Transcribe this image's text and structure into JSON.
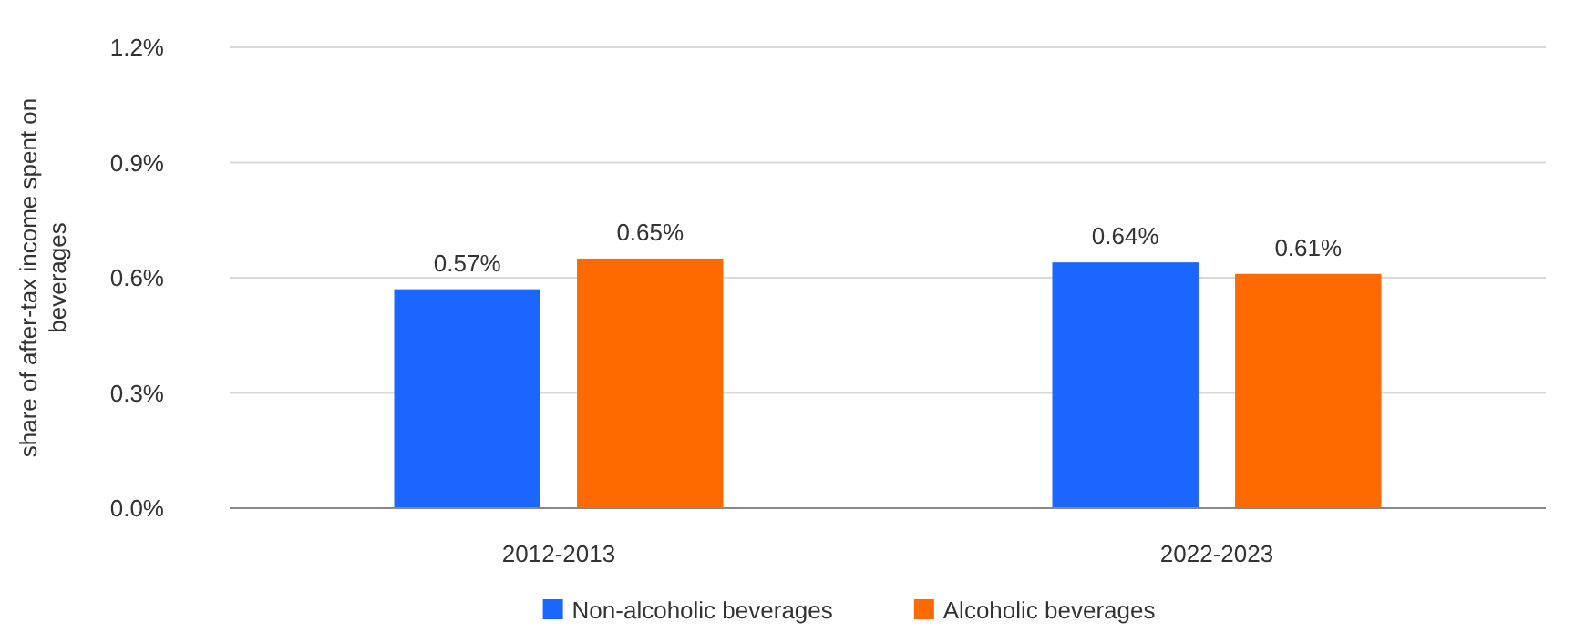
{
  "chart_data": {
    "type": "bar",
    "ylabel": "share of after-tax income spent on beverages",
    "categories": [
      "2012-2013",
      "2022-2023"
    ],
    "series": [
      {
        "name": "Non-alcoholic beverages",
        "color": "#1a66ff",
        "values": [
          0.57,
          0.64
        ],
        "value_labels": [
          "0.57%",
          "0.64%"
        ]
      },
      {
        "name": "Alcoholic beverages",
        "color": "#ff6a00",
        "values": [
          0.65,
          0.61
        ],
        "value_labels": [
          "0.65%",
          "0.61%"
        ]
      }
    ],
    "ylim": [
      0,
      1.2
    ],
    "yticks": [
      {
        "value": 0,
        "label": "0.0%"
      },
      {
        "value": 0.3,
        "label": "0.3%"
      },
      {
        "value": 0.6,
        "label": "0.6%"
      },
      {
        "value": 0.9,
        "label": "0.9%"
      },
      {
        "value": 1.2,
        "label": "1.2%"
      }
    ],
    "grid": "y",
    "legend": "bottom"
  }
}
